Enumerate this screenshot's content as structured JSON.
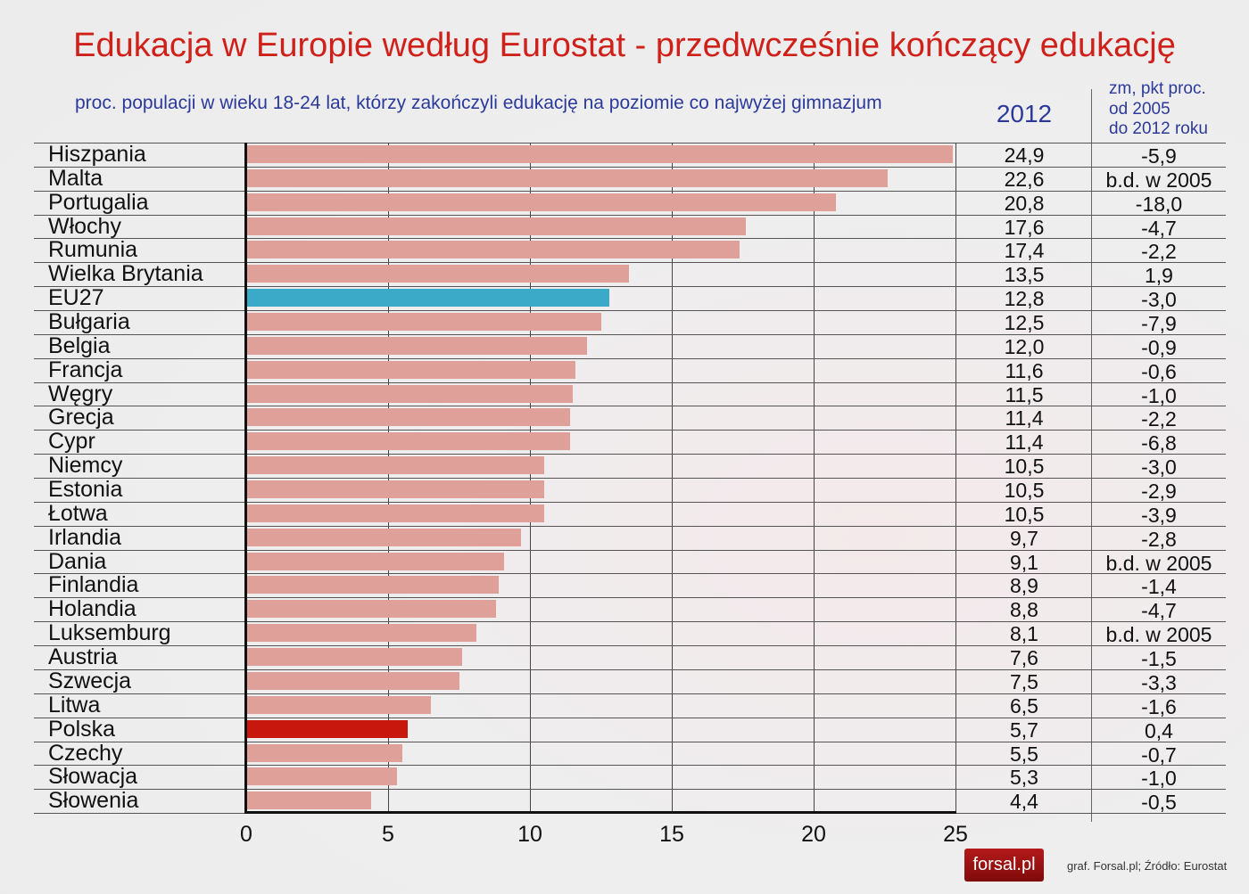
{
  "title": "Edukacja w Europie według Eurostat - przedwcześnie kończący edukację",
  "subtitle": "proc. populacji w wieku 18-24 lat, którzy zakończyli edukację na poziomie co najwyżej gimnazjum",
  "column_2012": "2012",
  "column_change": [
    "zm, pkt proc.",
    "od 2005",
    "do 2012 roku"
  ],
  "logo": "forsal.pl",
  "source": "graf. Forsal.pl; Źródło: Eurostat",
  "colors": {
    "bar": "#e0a09a",
    "eu": "#3aaac8",
    "poland": "#c8180e"
  },
  "chart_data": {
    "type": "bar",
    "orientation": "horizontal",
    "title": "Edukacja w Europie według Eurostat - przedwcześnie kończący edukację",
    "xlim": [
      0,
      25
    ],
    "xticks": [
      "0",
      "5",
      "10",
      "15",
      "20",
      "25"
    ],
    "grid": true,
    "categories": [
      "Hiszpania",
      "Malta",
      "Portugalia",
      "Włochy",
      "Rumunia",
      "Wielka Brytania",
      "EU27",
      "Bułgaria",
      "Belgia",
      "Francja",
      "Węgry",
      "Grecja",
      "Cypr",
      "Niemcy",
      "Estonia",
      "Łotwa",
      "Irlandia",
      "Dania",
      "Finlandia",
      "Holandia",
      "Luksemburg",
      "Austria",
      "Szwecja",
      "Litwa",
      "Polska",
      "Czechy",
      "Słowacja",
      "Słowenia"
    ],
    "values": [
      24.9,
      22.6,
      20.8,
      17.6,
      17.4,
      13.5,
      12.8,
      12.5,
      12.0,
      11.6,
      11.5,
      11.4,
      11.4,
      10.5,
      10.5,
      10.5,
      9.7,
      9.1,
      8.9,
      8.8,
      8.1,
      7.6,
      7.5,
      6.5,
      5.7,
      5.5,
      5.3,
      4.4
    ],
    "value_labels": [
      "24,9",
      "22,6",
      "20,8",
      "17,6",
      "17,4",
      "13,5",
      "12,8",
      "12,5",
      "12,0",
      "11,6",
      "11,5",
      "11,4",
      "11,4",
      "10,5",
      "10,5",
      "10,5",
      "9,7",
      "9,1",
      "8,9",
      "8,8",
      "8,1",
      "7,6",
      "7,5",
      "6,5",
      "5,7",
      "5,5",
      "5,3",
      "4,4"
    ],
    "change_labels": [
      "-5,9",
      "b.d. w 2005",
      "-18,0",
      "-4,7",
      "-2,2",
      "1,9",
      "-3,0",
      "-7,9",
      "-0,9",
      "-0,6",
      "-1,0",
      "-2,2",
      "-6,8",
      "-3,0",
      "-2,9",
      "-3,9",
      "-2,8",
      "b.d. w 2005",
      "-1,4",
      "-4,7",
      "b.d. w 2005",
      "-1,5",
      "-3,3",
      "-1,6",
      "0,4",
      "-0,7",
      "-1,0",
      "-0,5"
    ]
  }
}
